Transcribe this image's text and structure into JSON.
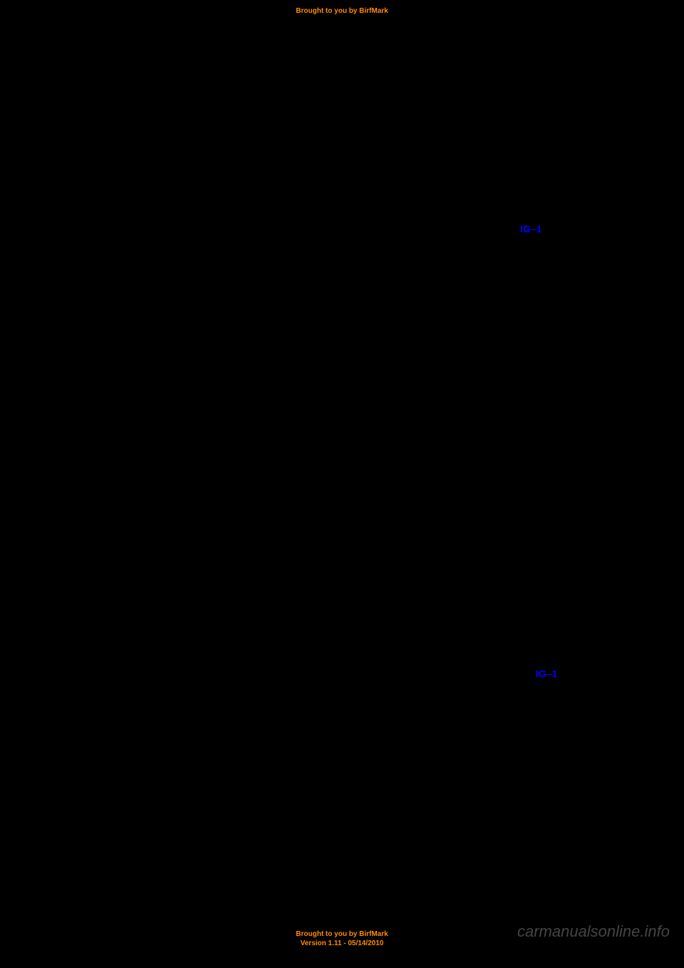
{
  "header": {
    "text": "Brought to you by BirfMark"
  },
  "links": {
    "link1": "IG–1",
    "link2": "IG–1"
  },
  "footer": {
    "line1": "Brought to you by BirfMark",
    "line2": "Version 1.11 - 05/14/2010"
  },
  "watermark": {
    "text": "carmanualsonline.info"
  },
  "colors": {
    "background": "#000000",
    "orange_text": "#ff8c00",
    "blue_link": "#0000ff",
    "watermark_gray": "#888888"
  }
}
